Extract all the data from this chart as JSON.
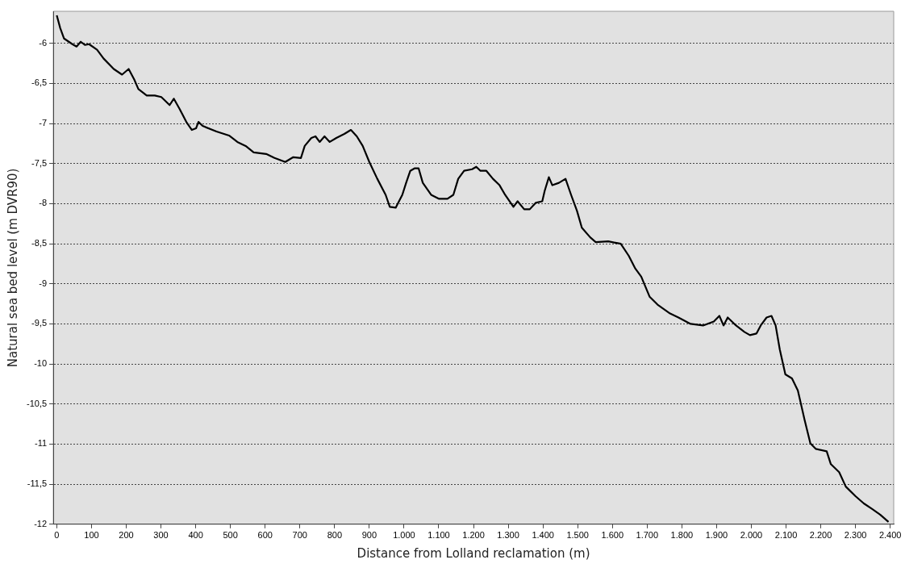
{
  "chart_data": {
    "type": "line",
    "xlabel": "Distance from Lolland reclamation (m)",
    "ylabel": "Natural sea bed level (m DVR90)",
    "color": "#000000",
    "grid": "y",
    "legend": false,
    "marker": "none",
    "line_style": "solid",
    "xlim": [
      -10,
      2410
    ],
    "ylim": [
      -12,
      -5.6
    ],
    "xticks": [
      0,
      100,
      200,
      300,
      400,
      500,
      600,
      700,
      800,
      900,
      {
        "value": 1000,
        "label": "1.000"
      },
      {
        "value": 1100,
        "label": "1.100"
      },
      {
        "value": 1200,
        "label": "1.200"
      },
      {
        "value": 1300,
        "label": "1.300"
      },
      {
        "value": 1400,
        "label": "1.400"
      },
      {
        "value": 1500,
        "label": "1.500"
      },
      {
        "value": 1600,
        "label": "1.600"
      },
      {
        "value": 1700,
        "label": "1.700"
      },
      {
        "value": 1800,
        "label": "1.800"
      },
      {
        "value": 1900,
        "label": "1.900"
      },
      {
        "value": 2000,
        "label": "2.000"
      },
      {
        "value": 2100,
        "label": "2.100"
      },
      {
        "value": 2200,
        "label": "2.200"
      },
      {
        "value": 2300,
        "label": "2.300"
      },
      {
        "value": 2400,
        "label": "2.400"
      }
    ],
    "yticks": [
      -6,
      {
        "value": -6.5,
        "label": "-6,5"
      },
      -7,
      {
        "value": -7.5,
        "label": "-7,5"
      },
      -8,
      {
        "value": -8.5,
        "label": "-8,5"
      },
      -9,
      {
        "value": -9.5,
        "label": "-9,5"
      },
      -10,
      {
        "value": -10.5,
        "label": "-10,5"
      },
      -11,
      {
        "value": -11.5,
        "label": "-11,5"
      },
      -12
    ],
    "x": [
      0,
      10,
      21,
      45,
      57,
      69,
      81,
      93,
      116,
      135,
      164,
      188,
      207,
      223,
      235,
      259,
      282,
      301,
      325,
      337,
      354,
      373,
      389,
      401,
      408,
      420,
      460,
      496,
      520,
      544,
      567,
      603,
      627,
      658,
      681,
      703,
      714,
      733,
      745,
      757,
      771,
      786,
      805,
      828,
      847,
      864,
      881,
      900,
      923,
      947,
      959,
      976,
      995,
      1006,
      1018,
      1030,
      1042,
      1054,
      1078,
      1101,
      1125,
      1142,
      1156,
      1173,
      1196,
      1208,
      1220,
      1237,
      1256,
      1275,
      1291,
      1315,
      1327,
      1346,
      1362,
      1379,
      1398,
      1405,
      1417,
      1427,
      1446,
      1465,
      1481,
      1498,
      1512,
      1536,
      1552,
      1588,
      1624,
      1647,
      1666,
      1683,
      1707,
      1730,
      1766,
      1790,
      1825,
      1861,
      1892,
      1908,
      1920,
      1932,
      1956,
      1980,
      1996,
      2015,
      2027,
      2044,
      2058,
      2070,
      2082,
      2098,
      2117,
      2134,
      2153,
      2170,
      2186,
      2217,
      2229,
      2253,
      2272,
      2300,
      2324,
      2348,
      2371,
      2395
    ],
    "values": [
      -5.65,
      -5.81,
      -5.94,
      -6.01,
      -6.04,
      -5.98,
      -6.02,
      -6.01,
      -6.08,
      -6.19,
      -6.32,
      -6.39,
      -6.32,
      -6.45,
      -6.57,
      -6.65,
      -6.65,
      -6.67,
      -6.77,
      -6.69,
      -6.82,
      -6.98,
      -7.08,
      -7.06,
      -6.98,
      -7.03,
      -7.1,
      -7.15,
      -7.23,
      -7.28,
      -7.36,
      -7.38,
      -7.43,
      -7.48,
      -7.42,
      -7.43,
      -7.28,
      -7.18,
      -7.16,
      -7.23,
      -7.16,
      -7.23,
      -7.18,
      -7.13,
      -7.08,
      -7.16,
      -7.28,
      -7.48,
      -7.69,
      -7.89,
      -8.04,
      -8.05,
      -7.89,
      -7.74,
      -7.59,
      -7.56,
      -7.56,
      -7.74,
      -7.89,
      -7.94,
      -7.94,
      -7.89,
      -7.69,
      -7.59,
      -7.57,
      -7.54,
      -7.59,
      -7.59,
      -7.69,
      -7.77,
      -7.89,
      -8.04,
      -7.97,
      -8.07,
      -8.07,
      -7.99,
      -7.97,
      -7.84,
      -7.67,
      -7.77,
      -7.74,
      -7.69,
      -7.89,
      -8.09,
      -8.3,
      -8.42,
      -8.48,
      -8.47,
      -8.5,
      -8.65,
      -8.81,
      -8.91,
      -9.16,
      -9.26,
      -9.37,
      -9.42,
      -9.5,
      -9.52,
      -9.47,
      -9.4,
      -9.52,
      -9.42,
      -9.52,
      -9.6,
      -9.64,
      -9.62,
      -9.52,
      -9.42,
      -9.4,
      -9.52,
      -9.82,
      -10.13,
      -10.18,
      -10.33,
      -10.69,
      -10.99,
      -11.06,
      -11.09,
      -11.25,
      -11.35,
      -11.53,
      -11.65,
      -11.74,
      -11.81,
      -11.88,
      -11.97
    ]
  }
}
